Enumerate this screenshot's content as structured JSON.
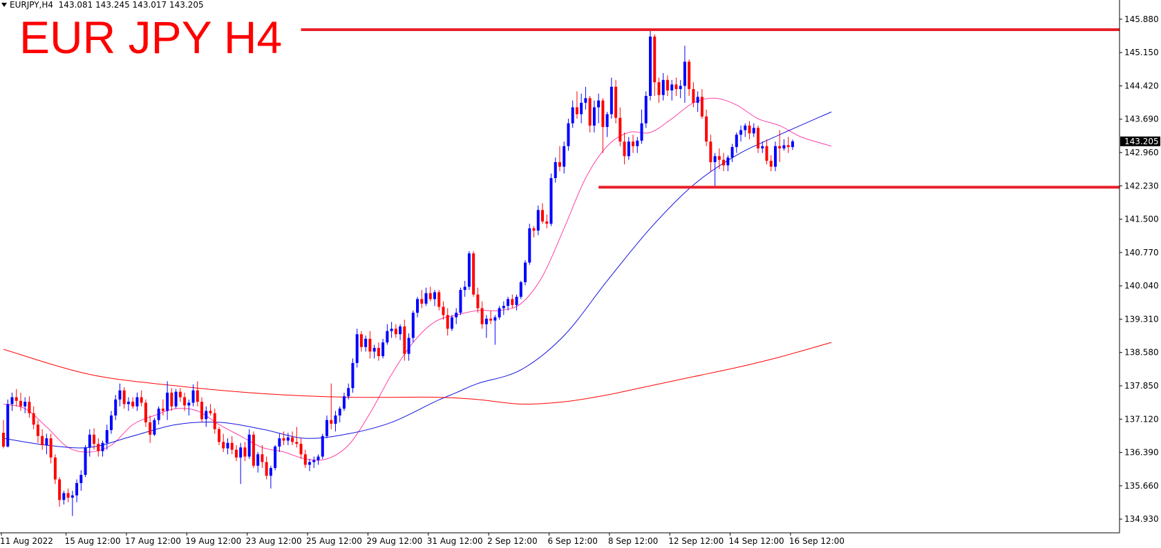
{
  "header": {
    "symbol": "EURJPY,H4",
    "ohlc": "143.081 143.245 143.017 143.205"
  },
  "overlay_title": "EUR JPY H4",
  "chart_data": {
    "type": "candlestick",
    "y_axis": {
      "ylim": [
        134.63,
        146.18
      ],
      "ticks": [
        "145.880",
        "145.150",
        "144.420",
        "143.690",
        "142.960",
        "142.230",
        "141.500",
        "140.770",
        "140.040",
        "139.310",
        "138.580",
        "137.850",
        "137.120",
        "136.390",
        "135.660",
        "134.930"
      ]
    },
    "x_axis": {
      "tick_labels": [
        "11 Aug 2022",
        "15 Aug 12:00",
        "17 Aug 12:00",
        "19 Aug 12:00",
        "23 Aug 12:00",
        "25 Aug 12:00",
        "29 Aug 12:00",
        "31 Aug 12:00",
        "2 Sep 12:00",
        "6 Sep 12:00",
        "8 Sep 12:00",
        "12 Sep 12:00",
        "14 Sep 12:00",
        "16 Sep 12:00"
      ]
    },
    "current_price": "143.205",
    "colors": {
      "bull": "#0000ff",
      "bear": "#ff0000",
      "ma_fast": "#ff3fa8",
      "ma_mid": "#1010e0",
      "ma_slow": "#ff0000",
      "level": "#e8202a",
      "price_tag_bg": "#000000",
      "price_tag_text": "#ffffff",
      "axis_text": "#000000"
    },
    "levels": [
      {
        "value": 145.65,
        "x_start_index": 69
      },
      {
        "value": 142.2,
        "x_start_index": 138
      }
    ],
    "candles": [
      [
        136.82,
        137.1,
        136.48,
        136.52
      ],
      [
        136.52,
        137.55,
        136.5,
        137.45
      ],
      [
        137.45,
        137.7,
        137.3,
        137.6
      ],
      [
        137.6,
        137.78,
        137.4,
        137.52
      ],
      [
        137.52,
        137.7,
        137.3,
        137.4
      ],
      [
        137.4,
        137.6,
        137.25,
        137.5
      ],
      [
        137.5,
        137.62,
        137.15,
        137.25
      ],
      [
        137.25,
        137.4,
        136.9,
        137.0
      ],
      [
        137.0,
        137.1,
        136.6,
        136.75
      ],
      [
        136.75,
        136.9,
        136.45,
        136.55
      ],
      [
        136.55,
        136.8,
        136.35,
        136.7
      ],
      [
        136.7,
        136.8,
        136.15,
        136.28
      ],
      [
        136.28,
        136.35,
        135.7,
        135.8
      ],
      [
        135.8,
        135.85,
        135.2,
        135.35
      ],
      [
        135.35,
        135.55,
        135.25,
        135.5
      ],
      [
        135.5,
        135.6,
        135.3,
        135.4
      ],
      [
        135.4,
        135.55,
        135.0,
        135.45
      ],
      [
        135.45,
        135.8,
        135.3,
        135.72
      ],
      [
        135.72,
        136.0,
        135.55,
        135.9
      ],
      [
        135.9,
        136.55,
        135.85,
        136.5
      ],
      [
        136.5,
        136.9,
        136.3,
        136.78
      ],
      [
        136.78,
        136.92,
        136.45,
        136.58
      ],
      [
        136.58,
        136.7,
        136.3,
        136.42
      ],
      [
        136.42,
        136.65,
        136.3,
        136.6
      ],
      [
        136.6,
        137.0,
        136.45,
        136.88
      ],
      [
        136.88,
        137.3,
        136.8,
        137.2
      ],
      [
        137.2,
        137.65,
        137.1,
        137.55
      ],
      [
        137.55,
        137.9,
        137.4,
        137.75
      ],
      [
        137.75,
        137.82,
        137.35,
        137.45
      ],
      [
        137.45,
        137.6,
        137.3,
        137.5
      ],
      [
        137.5,
        137.6,
        137.35,
        137.4
      ],
      [
        137.4,
        137.7,
        137.3,
        137.6
      ],
      [
        137.6,
        137.75,
        137.4,
        137.48
      ],
      [
        137.48,
        137.55,
        136.95,
        137.05
      ],
      [
        137.05,
        137.2,
        136.6,
        136.78
      ],
      [
        136.78,
        137.15,
        136.75,
        137.1
      ],
      [
        137.1,
        137.4,
        137.0,
        137.35
      ],
      [
        137.35,
        137.55,
        137.2,
        137.3
      ],
      [
        137.3,
        137.95,
        137.1,
        137.7
      ],
      [
        137.7,
        137.8,
        137.3,
        137.4
      ],
      [
        137.4,
        137.78,
        137.35,
        137.72
      ],
      [
        137.72,
        137.8,
        137.5,
        137.6
      ],
      [
        137.6,
        137.7,
        137.3,
        137.42
      ],
      [
        137.42,
        137.55,
        137.2,
        137.48
      ],
      [
        137.48,
        137.88,
        137.4,
        137.75
      ],
      [
        137.75,
        137.95,
        137.4,
        137.5
      ],
      [
        137.5,
        137.6,
        137.05,
        137.12
      ],
      [
        137.12,
        137.4,
        136.95,
        137.3
      ],
      [
        137.3,
        137.45,
        137.2,
        137.25
      ],
      [
        137.25,
        137.35,
        136.8,
        136.9
      ],
      [
        136.9,
        136.95,
        136.55,
        136.62
      ],
      [
        136.62,
        136.8,
        136.4,
        136.48
      ],
      [
        136.48,
        136.7,
        136.35,
        136.6
      ],
      [
        136.6,
        136.75,
        136.35,
        136.45
      ],
      [
        136.45,
        136.55,
        136.2,
        136.28
      ],
      [
        136.28,
        136.6,
        135.7,
        136.5
      ],
      [
        136.5,
        136.62,
        136.2,
        136.3
      ],
      [
        136.3,
        136.9,
        136.25,
        136.78
      ],
      [
        136.78,
        136.85,
        136.05,
        136.1
      ],
      [
        136.1,
        136.4,
        135.95,
        136.35
      ],
      [
        136.35,
        136.55,
        136.05,
        136.18
      ],
      [
        136.18,
        136.3,
        135.8,
        135.88
      ],
      [
        135.88,
        136.1,
        135.6,
        136.05
      ],
      [
        136.05,
        136.55,
        136.0,
        136.52
      ],
      [
        136.52,
        136.8,
        136.4,
        136.7
      ],
      [
        136.7,
        136.85,
        136.55,
        136.65
      ],
      [
        136.65,
        136.82,
        136.55,
        136.72
      ],
      [
        136.72,
        136.85,
        136.55,
        136.62
      ],
      [
        136.62,
        136.95,
        136.5,
        136.58
      ],
      [
        136.58,
        136.7,
        136.25,
        136.35
      ],
      [
        136.35,
        136.45,
        136.05,
        136.12
      ],
      [
        136.12,
        136.25,
        135.98,
        136.18
      ],
      [
        136.18,
        136.3,
        136.05,
        136.22
      ],
      [
        136.22,
        136.35,
        136.12,
        136.3
      ],
      [
        136.3,
        136.8,
        136.25,
        136.75
      ],
      [
        136.75,
        137.2,
        136.7,
        137.1
      ],
      [
        137.1,
        137.9,
        136.9,
        137.02
      ],
      [
        137.02,
        137.3,
        136.85,
        137.2
      ],
      [
        137.2,
        137.4,
        137.05,
        137.35
      ],
      [
        137.35,
        137.7,
        137.3,
        137.62
      ],
      [
        137.62,
        137.9,
        137.55,
        137.8
      ],
      [
        137.8,
        138.45,
        137.7,
        138.35
      ],
      [
        138.35,
        139.1,
        138.25,
        138.98
      ],
      [
        138.98,
        139.05,
        138.6,
        138.7
      ],
      [
        138.7,
        138.95,
        138.6,
        138.88
      ],
      [
        138.88,
        139.05,
        138.45,
        138.6
      ],
      [
        138.6,
        138.75,
        138.45,
        138.68
      ],
      [
        138.68,
        138.8,
        138.4,
        138.5
      ],
      [
        138.5,
        138.88,
        138.45,
        138.8
      ],
      [
        138.8,
        139.2,
        138.75,
        139.05
      ],
      [
        139.05,
        139.25,
        138.9,
        139.1
      ],
      [
        139.1,
        139.2,
        138.9,
        138.98
      ],
      [
        138.98,
        139.2,
        138.85,
        139.15
      ],
      [
        139.15,
        139.3,
        138.4,
        138.55
      ],
      [
        138.55,
        139.0,
        138.4,
        138.9
      ],
      [
        138.9,
        139.5,
        138.8,
        139.45
      ],
      [
        139.45,
        139.8,
        139.35,
        139.75
      ],
      [
        139.75,
        139.95,
        139.55,
        139.65
      ],
      [
        139.65,
        140.0,
        139.6,
        139.88
      ],
      [
        139.88,
        140.02,
        139.7,
        139.75
      ],
      [
        139.75,
        139.95,
        139.6,
        139.9
      ],
      [
        139.9,
        139.95,
        139.5,
        139.58
      ],
      [
        139.58,
        139.7,
        139.3,
        139.4
      ],
      [
        139.4,
        139.55,
        138.95,
        139.1
      ],
      [
        139.1,
        139.4,
        139.05,
        139.35
      ],
      [
        139.35,
        139.55,
        139.2,
        139.45
      ],
      [
        139.45,
        140.0,
        139.4,
        139.95
      ],
      [
        139.95,
        140.15,
        139.8,
        140.02
      ],
      [
        140.02,
        140.8,
        139.95,
        140.75
      ],
      [
        140.75,
        140.8,
        139.8,
        139.85
      ],
      [
        139.85,
        140.0,
        139.45,
        139.55
      ],
      [
        139.55,
        139.7,
        139.1,
        139.2
      ],
      [
        139.2,
        139.4,
        138.9,
        139.32
      ],
      [
        139.32,
        139.5,
        139.2,
        139.28
      ],
      [
        139.28,
        139.4,
        138.75,
        139.35
      ],
      [
        139.35,
        139.6,
        139.3,
        139.55
      ],
      [
        139.55,
        139.7,
        139.4,
        139.6
      ],
      [
        139.6,
        139.8,
        139.5,
        139.75
      ],
      [
        139.75,
        139.85,
        139.55,
        139.62
      ],
      [
        139.62,
        139.85,
        139.5,
        139.8
      ],
      [
        139.8,
        140.15,
        139.75,
        140.12
      ],
      [
        140.12,
        140.6,
        140.05,
        140.55
      ],
      [
        140.55,
        141.4,
        140.5,
        141.3
      ],
      [
        141.3,
        141.35,
        141.1,
        141.25
      ],
      [
        141.25,
        141.8,
        141.15,
        141.7
      ],
      [
        141.7,
        141.85,
        141.4,
        141.45
      ],
      [
        141.45,
        141.6,
        141.3,
        141.4
      ],
      [
        141.4,
        142.5,
        141.35,
        142.4
      ],
      [
        142.4,
        142.85,
        142.3,
        142.75
      ],
      [
        142.75,
        143.1,
        142.55,
        142.65
      ],
      [
        142.65,
        143.2,
        142.5,
        143.1
      ],
      [
        143.1,
        143.7,
        143.0,
        143.6
      ],
      [
        143.6,
        144.1,
        143.5,
        143.95
      ],
      [
        143.95,
        144.3,
        143.7,
        143.8
      ],
      [
        143.8,
        144.25,
        143.6,
        144.05
      ],
      [
        144.05,
        144.4,
        143.9,
        144.15
      ],
      [
        144.15,
        144.2,
        143.4,
        143.55
      ],
      [
        143.55,
        144.1,
        143.4,
        143.95
      ],
      [
        143.95,
        144.25,
        143.6,
        144.1
      ],
      [
        144.1,
        144.15,
        142.95,
        143.52
      ],
      [
        143.52,
        143.85,
        143.3,
        143.8
      ],
      [
        143.8,
        144.6,
        143.7,
        144.4
      ],
      [
        144.4,
        144.55,
        143.6,
        143.72
      ],
      [
        143.72,
        143.95,
        143.1,
        143.2
      ],
      [
        143.2,
        143.4,
        142.7,
        142.88
      ],
      [
        142.88,
        143.3,
        142.8,
        143.2
      ],
      [
        143.2,
        143.35,
        142.95,
        143.1
      ],
      [
        143.1,
        143.3,
        142.95,
        143.22
      ],
      [
        143.22,
        143.9,
        143.15,
        143.6
      ],
      [
        143.6,
        144.3,
        143.5,
        144.2
      ],
      [
        144.2,
        145.65,
        144.1,
        145.5
      ],
      [
        145.5,
        145.55,
        144.2,
        144.5
      ],
      [
        144.5,
        144.6,
        144.05,
        144.22
      ],
      [
        144.22,
        144.7,
        144.1,
        144.55
      ],
      [
        144.55,
        144.65,
        144.2,
        144.32
      ],
      [
        144.32,
        144.55,
        144.1,
        144.45
      ],
      [
        144.45,
        144.6,
        144.2,
        144.35
      ],
      [
        144.35,
        144.55,
        144.15,
        144.42
      ],
      [
        144.42,
        145.3,
        144.05,
        144.95
      ],
      [
        144.95,
        145.0,
        144.2,
        144.35
      ],
      [
        144.35,
        144.5,
        143.95,
        144.05
      ],
      [
        144.05,
        144.3,
        143.85,
        144.18
      ],
      [
        144.18,
        144.35,
        143.7,
        143.75
      ],
      [
        143.75,
        143.9,
        143.1,
        143.2
      ],
      [
        143.2,
        143.35,
        142.55,
        142.75
      ],
      [
        142.75,
        142.95,
        142.2,
        142.88
      ],
      [
        142.88,
        143.05,
        142.6,
        142.8
      ],
      [
        142.8,
        142.95,
        142.55,
        142.68
      ],
      [
        142.68,
        142.9,
        142.55,
        142.85
      ],
      [
        142.85,
        143.15,
        142.75,
        143.08
      ],
      [
        143.08,
        143.4,
        142.95,
        143.35
      ],
      [
        143.35,
        143.55,
        143.2,
        143.45
      ],
      [
        143.45,
        143.6,
        143.3,
        143.55
      ],
      [
        143.55,
        143.65,
        143.25,
        143.38
      ],
      [
        143.38,
        143.6,
        143.3,
        143.5
      ],
      [
        143.5,
        143.55,
        142.95,
        143.05
      ],
      [
        143.05,
        143.2,
        142.95,
        143.1
      ],
      [
        143.1,
        143.25,
        142.7,
        142.78
      ],
      [
        142.78,
        142.9,
        142.55,
        142.65
      ],
      [
        142.65,
        143.2,
        142.55,
        143.1
      ],
      [
        143.1,
        143.45,
        142.75,
        143.05
      ],
      [
        143.05,
        143.25,
        143.0,
        143.12
      ],
      [
        143.12,
        143.3,
        142.95,
        143.08
      ],
      [
        143.08,
        143.245,
        143.017,
        143.205
      ]
    ],
    "ma_fast": [
      [
        0,
        137.45
      ],
      [
        5,
        137.35
      ],
      [
        10,
        136.95
      ],
      [
        15,
        136.5
      ],
      [
        20,
        136.4
      ],
      [
        25,
        136.55
      ],
      [
        30,
        137.0
      ],
      [
        35,
        137.2
      ],
      [
        40,
        137.35
      ],
      [
        45,
        137.3
      ],
      [
        50,
        137.0
      ],
      [
        55,
        136.75
      ],
      [
        60,
        136.5
      ],
      [
        65,
        136.4
      ],
      [
        70,
        136.25
      ],
      [
        75,
        136.25
      ],
      [
        80,
        136.55
      ],
      [
        85,
        137.25
      ],
      [
        90,
        138.1
      ],
      [
        95,
        138.8
      ],
      [
        100,
        139.25
      ],
      [
        105,
        139.4
      ],
      [
        110,
        139.5
      ],
      [
        115,
        139.5
      ],
      [
        120,
        139.65
      ],
      [
        125,
        140.25
      ],
      [
        130,
        141.3
      ],
      [
        135,
        142.4
      ],
      [
        140,
        143.1
      ],
      [
        145,
        143.4
      ],
      [
        150,
        143.4
      ],
      [
        155,
        143.7
      ],
      [
        160,
        144.05
      ],
      [
        165,
        144.15
      ],
      [
        170,
        144.0
      ],
      [
        175,
        143.7
      ],
      [
        180,
        143.55
      ],
      [
        185,
        143.3
      ],
      [
        192,
        143.1
      ]
    ],
    "ma_mid": [
      [
        0,
        136.7
      ],
      [
        10,
        136.55
      ],
      [
        20,
        136.5
      ],
      [
        30,
        136.75
      ],
      [
        40,
        137.0
      ],
      [
        50,
        137.05
      ],
      [
        60,
        136.9
      ],
      [
        70,
        136.7
      ],
      [
        80,
        136.8
      ],
      [
        90,
        137.05
      ],
      [
        100,
        137.5
      ],
      [
        105,
        137.7
      ],
      [
        110,
        137.9
      ],
      [
        120,
        138.2
      ],
      [
        130,
        138.95
      ],
      [
        140,
        140.15
      ],
      [
        150,
        141.3
      ],
      [
        160,
        142.25
      ],
      [
        170,
        142.9
      ],
      [
        180,
        143.35
      ],
      [
        192,
        143.85
      ]
    ],
    "ma_slow": [
      [
        0,
        138.65
      ],
      [
        20,
        138.1
      ],
      [
        40,
        137.85
      ],
      [
        60,
        137.68
      ],
      [
        80,
        137.6
      ],
      [
        100,
        137.6
      ],
      [
        110,
        137.55
      ],
      [
        120,
        137.45
      ],
      [
        130,
        137.5
      ],
      [
        140,
        137.65
      ],
      [
        150,
        137.85
      ],
      [
        160,
        138.05
      ],
      [
        170,
        138.25
      ],
      [
        180,
        138.48
      ],
      [
        192,
        138.8
      ]
    ]
  }
}
